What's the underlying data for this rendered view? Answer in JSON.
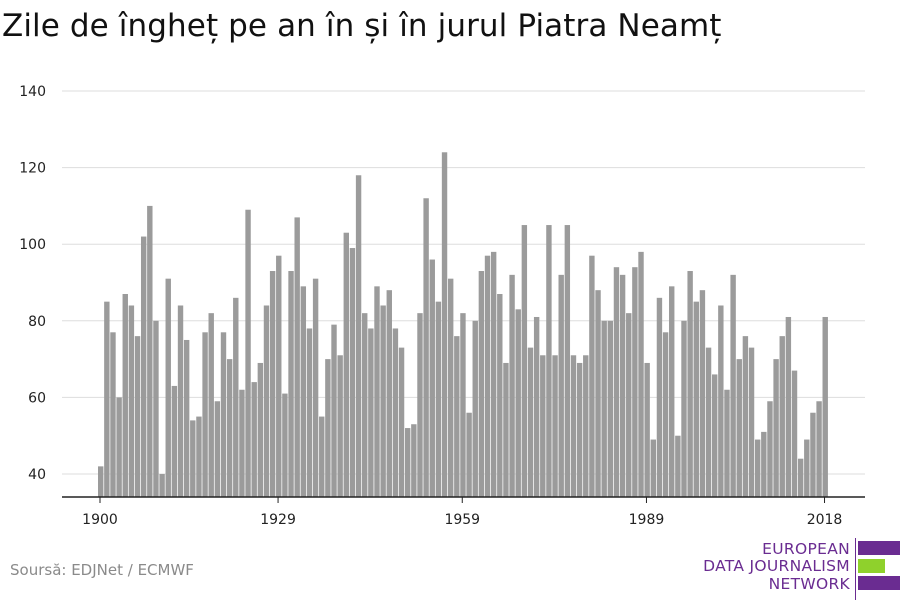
{
  "title": "Zile de îngheț pe an în și în jurul Piatra Neamț",
  "source": "Soursă: EDJNet / ECMWF",
  "logo": {
    "line1": "EUROPEAN",
    "line2": "DATA JOURNALISM",
    "line3": "NETWORK",
    "color": "#6a2c91",
    "accent": "#8fd12c"
  },
  "colors": {
    "bar": "#9b9b9b",
    "grid": "#dddddd",
    "axis": "#222222"
  },
  "chart_data": {
    "type": "bar",
    "title": "Zile de îngheț pe an în și în jurul Piatra Neamț",
    "xlabel": "",
    "ylabel": "",
    "x_ticks": [
      1900,
      1929,
      1959,
      1989,
      2018
    ],
    "y_ticks": [
      40,
      60,
      80,
      100,
      120,
      140
    ],
    "ylim": [
      34,
      140
    ],
    "grid": true,
    "x_start": 1900,
    "values": [
      42,
      85,
      77,
      60,
      87,
      84,
      76,
      102,
      110,
      80,
      40,
      91,
      63,
      84,
      75,
      54,
      55,
      77,
      82,
      59,
      77,
      70,
      86,
      62,
      109,
      64,
      69,
      84,
      93,
      97,
      61,
      93,
      107,
      89,
      78,
      91,
      55,
      70,
      79,
      71,
      103,
      99,
      118,
      82,
      78,
      89,
      84,
      88,
      78,
      73,
      52,
      53,
      82,
      112,
      96,
      85,
      124,
      91,
      76,
      82,
      56,
      80,
      93,
      97,
      98,
      87,
      69,
      92,
      83,
      105,
      73,
      81,
      71,
      105,
      71,
      92,
      105,
      71,
      69,
      71,
      97,
      88,
      80,
      80,
      94,
      92,
      82,
      94,
      98,
      69,
      49,
      86,
      77,
      89,
      50,
      80,
      93,
      85,
      88,
      73,
      66,
      84,
      62,
      92,
      70,
      76,
      73,
      49,
      51,
      59,
      70,
      76,
      81,
      67,
      44,
      49,
      56,
      59,
      81
    ]
  }
}
